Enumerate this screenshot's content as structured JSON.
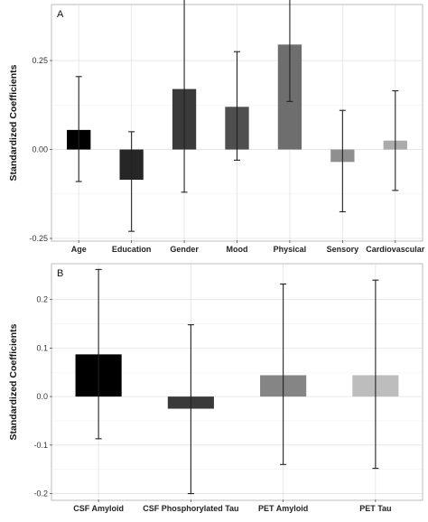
{
  "chart_data": [
    {
      "type": "bar",
      "panel_label": "A",
      "ylabel": "Standardized Coefficients",
      "xlabel": "",
      "ylim": [
        -0.255,
        0.405
      ],
      "yticks": [
        -0.25,
        0.0,
        0.25
      ],
      "ytick_labels": [
        "-0.25",
        "0.00",
        "0.25"
      ],
      "categories": [
        "Age",
        "Education",
        "Gender",
        "Mood",
        "Physical",
        "Sensory",
        "Cardiovascular"
      ],
      "values": [
        0.055,
        -0.085,
        0.17,
        0.12,
        0.295,
        -0.035,
        0.025
      ],
      "error_low": [
        -0.09,
        -0.23,
        -0.12,
        -0.03,
        0.135,
        -0.175,
        -0.115
      ],
      "error_high": [
        0.205,
        0.05,
        0.465,
        0.275,
        0.455,
        0.11,
        0.165
      ],
      "colors": [
        "#000000",
        "#262626",
        "#3a3a3a",
        "#4f4f4f",
        "#6e6e6e",
        "#8f8f8f",
        "#ababab"
      ],
      "grid": true
    },
    {
      "type": "bar",
      "panel_label": "B",
      "ylabel": "Standardized Coefficients",
      "xlabel": "",
      "ylim": [
        -0.212,
        0.272
      ],
      "yticks": [
        -0.2,
        -0.1,
        0.0,
        0.1,
        0.2
      ],
      "ytick_labels": [
        "-0.2",
        "-0.1",
        "0.0",
        "0.1",
        "0.2"
      ],
      "categories": [
        "CSF Amyloid",
        "CSF Phosphorylated Tau",
        "PET Amyloid",
        "PET Tau"
      ],
      "values": [
        0.087,
        -0.025,
        0.044,
        0.044
      ],
      "error_low": [
        -0.087,
        -0.2,
        -0.14,
        -0.148
      ],
      "error_high": [
        0.262,
        0.148,
        0.232,
        0.24
      ],
      "colors": [
        "#000000",
        "#3a3a3a",
        "#858585",
        "#bdbdbd"
      ],
      "grid": true
    }
  ]
}
